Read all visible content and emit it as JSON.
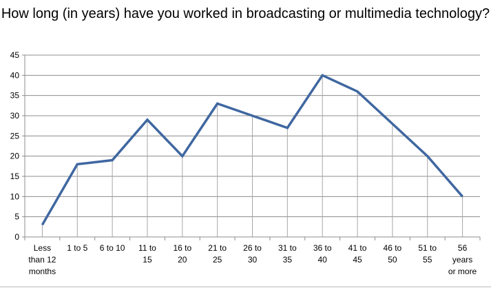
{
  "chart_data": {
    "type": "line",
    "title": "How long (in years) have you worked in broadcasting or multimedia technology?",
    "xlabel": "",
    "ylabel": "",
    "categories": [
      "Less than 12 months",
      "1 to 5",
      "6 to 10",
      "11 to 15",
      "16 to 20",
      "21 to 25",
      "26 to 30",
      "31 to 35",
      "36 to 40",
      "41 to 45",
      "46 to 50",
      "51 to 55",
      "56 years or more"
    ],
    "series": [
      {
        "values": [
          3,
          18,
          19,
          29,
          20,
          33,
          30,
          27,
          40,
          36,
          28,
          20,
          10
        ],
        "color": "#3F67A0"
      }
    ],
    "ylim": [
      0,
      45
    ],
    "yticks": [
      0,
      5,
      10,
      15,
      20,
      25,
      30,
      35,
      40,
      45
    ],
    "grid": "horizontal",
    "drop_lines": true,
    "legend": "none"
  }
}
